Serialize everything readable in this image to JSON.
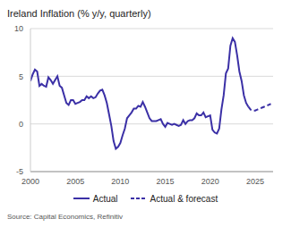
{
  "chart_data": {
    "type": "line",
    "title": "Ireland Inflation (% y/y, quarterly)",
    "source": "Source: Capital Economics, Refinitiv",
    "x": [
      2000,
      2000.25,
      2000.5,
      2000.75,
      2001,
      2001.25,
      2001.5,
      2001.75,
      2002,
      2002.25,
      2002.5,
      2002.75,
      2003,
      2003.25,
      2003.5,
      2003.75,
      2004,
      2004.25,
      2004.5,
      2004.75,
      2005,
      2005.25,
      2005.5,
      2005.75,
      2006,
      2006.25,
      2006.5,
      2006.75,
      2007,
      2007.25,
      2007.5,
      2007.75,
      2008,
      2008.25,
      2008.5,
      2008.75,
      2009,
      2009.25,
      2009.5,
      2009.75,
      2010,
      2010.25,
      2010.5,
      2010.75,
      2011,
      2011.25,
      2011.5,
      2011.75,
      2012,
      2012.25,
      2012.5,
      2012.75,
      2013,
      2013.25,
      2013.5,
      2013.75,
      2014,
      2014.25,
      2014.5,
      2014.75,
      2015,
      2015.25,
      2015.5,
      2015.75,
      2016,
      2016.25,
      2016.5,
      2016.75,
      2017,
      2017.25,
      2017.5,
      2017.75,
      2018,
      2018.25,
      2018.5,
      2018.75,
      2019,
      2019.25,
      2019.5,
      2019.75,
      2020,
      2020.25,
      2020.5,
      2020.75,
      2021,
      2021.25,
      2021.5,
      2021.75,
      2022,
      2022.25,
      2022.5,
      2022.75,
      2023,
      2023.25,
      2023.5,
      2023.75,
      2024,
      2024.25,
      2024.5,
      2024.75,
      2025,
      2025.25,
      2025.5,
      2025.75,
      2026,
      2026.25,
      2026.5,
      2026.75
    ],
    "series": [
      {
        "name": "Actual",
        "color": "#3b30a6",
        "line_style": "solid",
        "values": [
          4.5,
          5.2,
          5.7,
          5.5,
          4.0,
          4.2,
          4.0,
          3.9,
          4.9,
          4.6,
          4.2,
          4.6,
          5.0,
          4.0,
          3.8,
          3.0,
          2.2,
          2.0,
          2.5,
          2.5,
          2.1,
          2.2,
          2.3,
          2.5,
          2.5,
          2.9,
          2.7,
          2.9,
          2.7,
          2.8,
          3.2,
          3.5,
          3.6,
          3.0,
          2.2,
          1.0,
          -0.2,
          -1.8,
          -2.6,
          -2.4,
          -2.0,
          -1.2,
          -0.5,
          0.6,
          0.9,
          1.2,
          1.6,
          1.6,
          1.9,
          1.8,
          2.3,
          1.8,
          1.2,
          0.6,
          0.3,
          0.3,
          0.3,
          0.4,
          0.5,
          0.0,
          -0.3,
          0.1,
          0.0,
          -0.1,
          0.0,
          -0.1,
          -0.2,
          -0.1,
          0.4,
          0.0,
          0.3,
          0.4,
          0.4,
          0.6,
          1.1,
          0.9,
          0.9,
          1.2,
          0.7,
          0.8,
          0.9,
          -0.6,
          -0.9,
          -1.0,
          -0.5,
          1.5,
          3.0,
          5.3,
          5.8,
          8.2,
          9.0,
          8.6,
          7.2,
          5.5,
          4.5,
          3.0,
          2.2,
          1.8,
          null,
          null,
          null,
          null,
          null,
          null,
          null,
          null,
          null,
          null
        ]
      },
      {
        "name": "Actual & forecast",
        "color": "#3b30a6",
        "line_style": "dashed",
        "values": [
          null,
          null,
          null,
          null,
          null,
          null,
          null,
          null,
          null,
          null,
          null,
          null,
          null,
          null,
          null,
          null,
          null,
          null,
          null,
          null,
          null,
          null,
          null,
          null,
          null,
          null,
          null,
          null,
          null,
          null,
          null,
          null,
          null,
          null,
          null,
          null,
          null,
          null,
          null,
          null,
          null,
          null,
          null,
          null,
          null,
          null,
          null,
          null,
          null,
          null,
          null,
          null,
          null,
          null,
          null,
          null,
          null,
          null,
          null,
          null,
          null,
          null,
          null,
          null,
          null,
          null,
          null,
          null,
          null,
          null,
          null,
          null,
          null,
          null,
          null,
          null,
          null,
          null,
          null,
          null,
          null,
          null,
          null,
          null,
          null,
          null,
          null,
          null,
          null,
          null,
          null,
          null,
          null,
          null,
          null,
          null,
          null,
          1.8,
          1.5,
          1.4,
          1.4,
          1.5,
          1.6,
          1.7,
          1.8,
          1.9,
          2.0,
          2.1
        ]
      }
    ],
    "xlim": [
      2000,
      2027
    ],
    "xticks": [
      2000,
      2005,
      2010,
      2015,
      2020,
      2025
    ],
    "ylim": [
      -5,
      10
    ],
    "yticks": [
      -5,
      0,
      5,
      10
    ],
    "grid": true,
    "legend": "bottom"
  }
}
